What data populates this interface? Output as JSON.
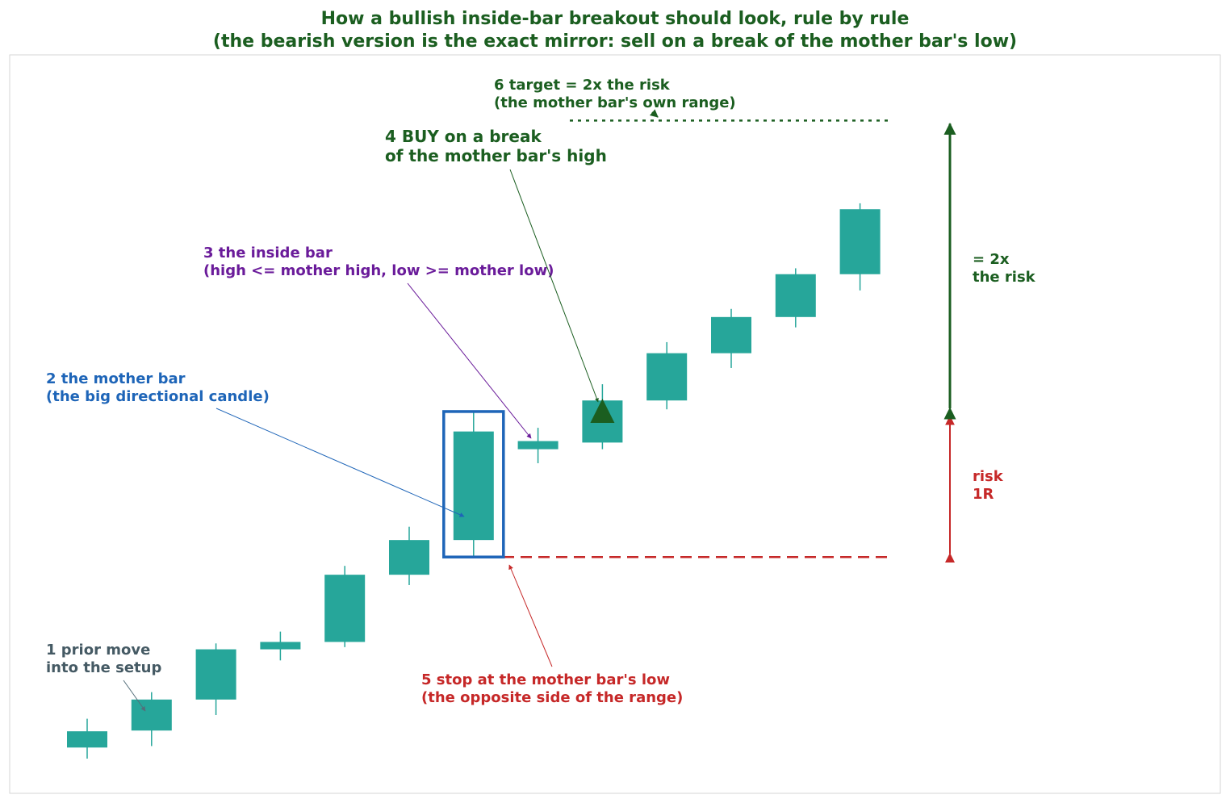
{
  "chart_data": {
    "type": "candlestick",
    "title": [
      "How a bullish inside-bar breakout should look, rule by rule",
      "(the bearish version is the exact mirror: sell on a break of the mother bar's low)"
    ],
    "color": "#26a69a",
    "ylim": [
      0,
      100
    ],
    "candles": [
      {
        "open": 6.2,
        "high": 10.1,
        "low": 4.7,
        "close": 8.4
      },
      {
        "open": 8.5,
        "high": 13.7,
        "low": 6.4,
        "close": 12.7
      },
      {
        "open": 12.7,
        "high": 20.3,
        "low": 10.6,
        "close": 19.5
      },
      {
        "open": 19.5,
        "high": 21.9,
        "low": 18.0,
        "close": 20.5
      },
      {
        "open": 20.5,
        "high": 30.8,
        "low": 19.8,
        "close": 29.6
      },
      {
        "open": 29.6,
        "high": 36.1,
        "low": 28.2,
        "close": 34.3
      },
      {
        "open": 34.3,
        "high": 51.7,
        "low": 32.0,
        "close": 49.0
      },
      {
        "open": 46.6,
        "high": 49.5,
        "low": 44.7,
        "close": 47.7
      },
      {
        "open": 47.5,
        "high": 55.4,
        "low": 46.6,
        "close": 53.2
      },
      {
        "open": 53.2,
        "high": 61.1,
        "low": 52.0,
        "close": 59.6
      },
      {
        "open": 59.6,
        "high": 65.6,
        "low": 57.6,
        "close": 64.5
      },
      {
        "open": 64.5,
        "high": 71.1,
        "low": 63.1,
        "close": 70.3
      },
      {
        "open": 70.3,
        "high": 79.9,
        "low": 68.1,
        "close": 79.1
      }
    ],
    "entry": 51.7,
    "stop": 32.0,
    "target": 91.1,
    "annotations": [
      [
        "1  prior move",
        "into the setup"
      ],
      [
        "2  the mother bar",
        "(the big directional candle)"
      ],
      [
        "3  the inside bar",
        "(high <= mother high, low >= mother low)"
      ],
      [
        "4  BUY on a break",
        "of the mother bar's high"
      ],
      [
        "5  stop at the mother bar's low",
        "(the opposite side of the range)"
      ],
      [
        "6  target = 2x the risk",
        "(the mother bar's own range)"
      ],
      [
        "= 2x",
        "the risk"
      ],
      [
        "risk",
        "1R"
      ]
    ]
  }
}
